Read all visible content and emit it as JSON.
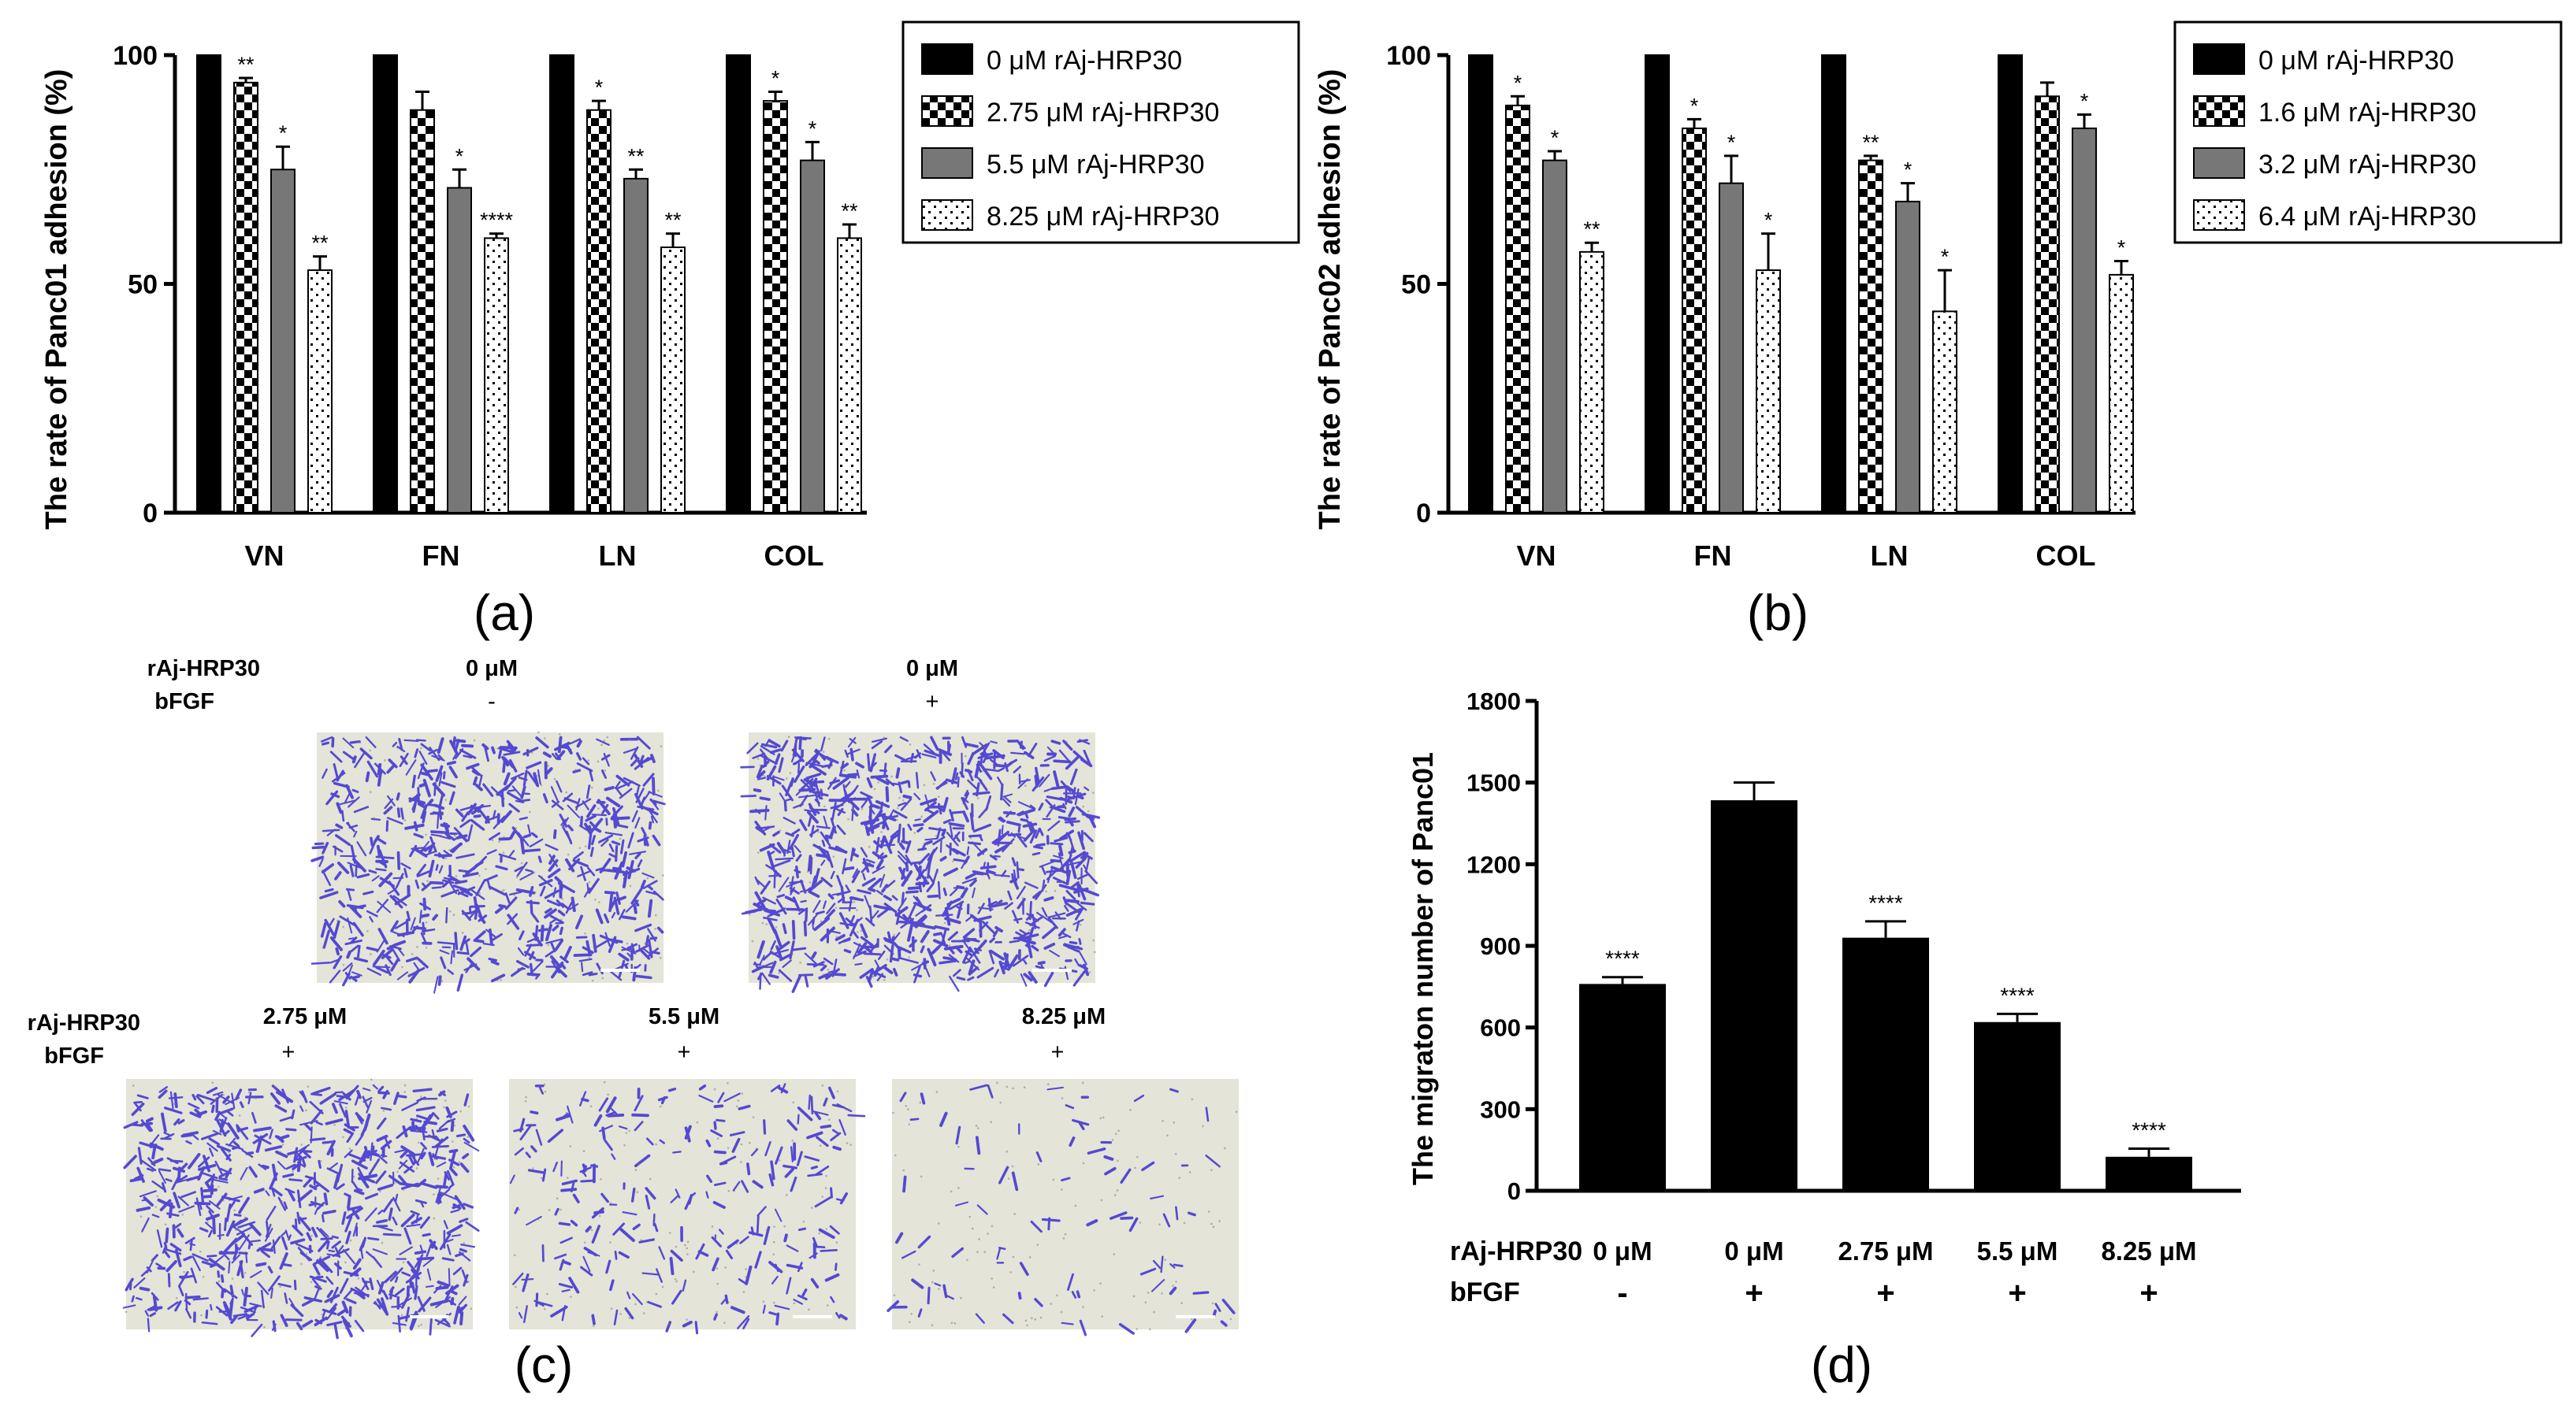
{
  "panel_labels": {
    "a": "(a)",
    "b": "(b)",
    "c": "(c)",
    "d": "(d)"
  },
  "colors": {
    "bar": "#000000",
    "gray": "#777777",
    "micro_bg": "#e4e4d8",
    "stain": "#3c2fd0"
  },
  "chart_data": [
    {
      "id": "a",
      "type": "bar",
      "title": "",
      "xlabel": "",
      "ylabel": "The rate of Panc01 adhesion (%)",
      "ylim": [
        0,
        100
      ],
      "yticks": [
        "0",
        "50",
        "100"
      ],
      "categories": [
        "VN",
        "FN",
        "LN",
        "COL"
      ],
      "series": [
        {
          "name": "0 μM rAj-HRP30",
          "pattern": "solid",
          "values": [
            100,
            100,
            100,
            100
          ],
          "errors": [
            0,
            0,
            0,
            0
          ],
          "sig": [
            "",
            "",
            "",
            ""
          ]
        },
        {
          "name": "2.75 μM rAj-HRP30",
          "pattern": "checker",
          "values": [
            94,
            88,
            88,
            90
          ],
          "errors": [
            1,
            4,
            2,
            2
          ],
          "sig": [
            "**",
            "",
            "*",
            "*"
          ]
        },
        {
          "name": "5.5 μM rAj-HRP30",
          "pattern": "gray",
          "values": [
            75,
            71,
            73,
            77
          ],
          "errors": [
            5,
            4,
            2,
            4
          ],
          "sig": [
            "*",
            "*",
            "**",
            "*"
          ]
        },
        {
          "name": "8.25 μM rAj-HRP30",
          "pattern": "dots",
          "values": [
            53,
            60,
            58,
            60
          ],
          "errors": [
            3,
            1,
            3,
            3
          ],
          "sig": [
            "**",
            "****",
            "**",
            "**"
          ]
        }
      ],
      "legend": "top-right"
    },
    {
      "id": "b",
      "type": "bar",
      "title": "",
      "xlabel": "",
      "ylabel": "The rate of Panc02 adhesion (%)",
      "ylim": [
        0,
        100
      ],
      "yticks": [
        "0",
        "50",
        "100"
      ],
      "categories": [
        "VN",
        "FN",
        "LN",
        "COL"
      ],
      "series": [
        {
          "name": "0 μM rAj-HRP30",
          "pattern": "solid",
          "values": [
            100,
            100,
            100,
            100
          ],
          "errors": [
            0,
            0,
            0,
            0
          ],
          "sig": [
            "",
            "",
            "",
            ""
          ]
        },
        {
          "name": "1.6 μM rAj-HRP30",
          "pattern": "checker",
          "values": [
            89,
            84,
            77,
            91
          ],
          "errors": [
            2,
            2,
            1,
            3
          ],
          "sig": [
            "*",
            "*",
            "**",
            ""
          ]
        },
        {
          "name": "3.2 μM rAj-HRP30",
          "pattern": "gray",
          "values": [
            77,
            72,
            68,
            84
          ],
          "errors": [
            2,
            6,
            4,
            3
          ],
          "sig": [
            "*",
            "*",
            "*",
            "*"
          ]
        },
        {
          "name": "6.4 μM rAj-HRP30",
          "pattern": "dots",
          "values": [
            57,
            53,
            44,
            52
          ],
          "errors": [
            2,
            8,
            9,
            3
          ],
          "sig": [
            "**",
            "*",
            "*",
            "*"
          ]
        }
      ],
      "legend": "top-right"
    },
    {
      "id": "d",
      "type": "bar",
      "title": "",
      "xlabel": "",
      "ylabel": "The migraton number of Panc01",
      "ylim": [
        0,
        1800
      ],
      "yticks": [
        "0",
        "300",
        "600",
        "900",
        "1200",
        "1500",
        "1800"
      ],
      "row_labels": [
        "rAj-HRP30",
        "bFGF"
      ],
      "categories": [
        "0 μM",
        "0 μM",
        "2.75 μM",
        "5.5 μM",
        "8.25 μM"
      ],
      "bfgf": [
        "-",
        "+",
        "+",
        "+",
        "+"
      ],
      "values": [
        760,
        1435,
        930,
        620,
        125
      ],
      "errors": [
        25,
        65,
        60,
        30,
        30
      ],
      "sig": [
        "****",
        "",
        "****",
        "****",
        "****"
      ]
    }
  ],
  "micrographs": {
    "row1": {
      "label_drug": "rAj-HRP30",
      "label_bfgf": "bFGF",
      "images": [
        {
          "conc": "0 μM",
          "bfgf": "-",
          "density": 1.0
        },
        {
          "conc": "0 μM",
          "bfgf": "+",
          "density": 1.3
        }
      ]
    },
    "row2": {
      "label_drug": "rAj-HRP30",
      "label_bfgf": "bFGF",
      "images": [
        {
          "conc": "2.75 μM",
          "bfgf": "+",
          "density": 1.05
        },
        {
          "conc": "5.5 μM",
          "bfgf": "+",
          "density": 0.35
        },
        {
          "conc": "8.25 μM",
          "bfgf": "+",
          "density": 0.12
        }
      ]
    }
  }
}
